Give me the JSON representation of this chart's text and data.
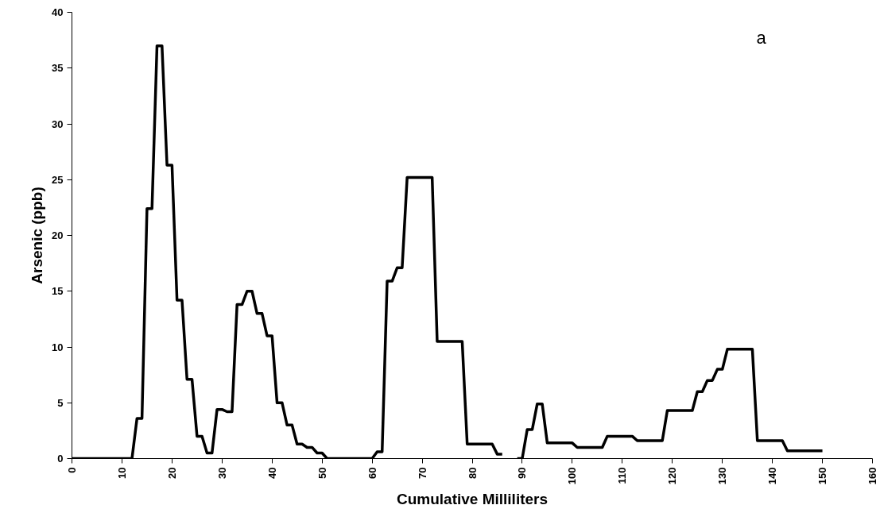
{
  "chart_data": {
    "type": "line",
    "xlabel": "Cumulative Milliliters",
    "ylabel": "Arsenic (ppb)",
    "annotations": [
      "a"
    ],
    "x": [
      0,
      1,
      2,
      3,
      4,
      5,
      6,
      7,
      8,
      9,
      10,
      11,
      12,
      13,
      14,
      15,
      16,
      17,
      18,
      19,
      20,
      21,
      22,
      23,
      24,
      25,
      26,
      27,
      28,
      29,
      30,
      31,
      32,
      33,
      34,
      35,
      36,
      37,
      38,
      39,
      40,
      41,
      42,
      43,
      44,
      45,
      46,
      47,
      48,
      49,
      50,
      51,
      52,
      53,
      54,
      55,
      56,
      57,
      58,
      59,
      60,
      61,
      62,
      63,
      64,
      65,
      66,
      67,
      68,
      69,
      70,
      71,
      72,
      73,
      74,
      75,
      76,
      77,
      78,
      79,
      80,
      81,
      82,
      83,
      84,
      85,
      86,
      87,
      88,
      89,
      90,
      91,
      92,
      93,
      94,
      95,
      96,
      97,
      98,
      99,
      100,
      101,
      102,
      103,
      104,
      105,
      106,
      107,
      108,
      109,
      110,
      111,
      112,
      113,
      114,
      115,
      116,
      117,
      118,
      119,
      120,
      121,
      122,
      123,
      124,
      125,
      126,
      127,
      128,
      129,
      130,
      131,
      132,
      133,
      134,
      135,
      136,
      137,
      138,
      139,
      140,
      141,
      142,
      143,
      144,
      145,
      146,
      147,
      148,
      149,
      150
    ],
    "series": [
      {
        "color": "#000000",
        "values": [
          0,
          0,
          0,
          0,
          0,
          0,
          0,
          0,
          0,
          0,
          0,
          0,
          0,
          3.6,
          3.6,
          22.4,
          22.4,
          37,
          37,
          26.3,
          26.3,
          14.2,
          14.2,
          7.1,
          7.1,
          2,
          2,
          0.5,
          0.5,
          4.4,
          4.4,
          4.2,
          4.2,
          13.8,
          13.8,
          15,
          15,
          13,
          13,
          11,
          11,
          5,
          5,
          3,
          3,
          1.3,
          1.3,
          1,
          1,
          0.5,
          0.5,
          0,
          0,
          0,
          0,
          0,
          0,
          0,
          0,
          0,
          0,
          0.6,
          0.6,
          15.9,
          15.9,
          17.1,
          17.1,
          25.2,
          25.2,
          25.2,
          25.2,
          25.2,
          25.2,
          10.5,
          10.5,
          10.5,
          10.5,
          10.5,
          10.5,
          1.3,
          1.3,
          1.3,
          1.3,
          1.3,
          1.3,
          0.4,
          0.4,
          null,
          null,
          0,
          0,
          2.6,
          2.6,
          4.9,
          4.9,
          1.4,
          1.4,
          1.4,
          1.4,
          1.4,
          1.4,
          1.0,
          1.0,
          1.0,
          1.0,
          1.0,
          1.0,
          2,
          2,
          2,
          2,
          2,
          2,
          1.6,
          1.6,
          1.6,
          1.6,
          1.6,
          1.6,
          4.3,
          4.3,
          4.3,
          4.3,
          4.3,
          4.3,
          6,
          6,
          7,
          7,
          8,
          8,
          9.8,
          9.8,
          9.8,
          9.8,
          9.8,
          9.8,
          1.6,
          1.6,
          1.6,
          1.6,
          1.6,
          1.6,
          0.7,
          0.7,
          0.7,
          0.7,
          0.7,
          0.7,
          0.7,
          0.7
        ]
      }
    ],
    "xlim": [
      0,
      160
    ],
    "xticks": [
      0,
      10,
      20,
      30,
      40,
      50,
      60,
      70,
      80,
      90,
      100,
      110,
      120,
      130,
      140,
      150,
      160
    ],
    "ylim": [
      0,
      40
    ],
    "yticks": [
      0,
      5,
      10,
      15,
      20,
      25,
      30,
      35,
      40
    ],
    "grid": false,
    "marker": "none",
    "line_style": "solid"
  }
}
